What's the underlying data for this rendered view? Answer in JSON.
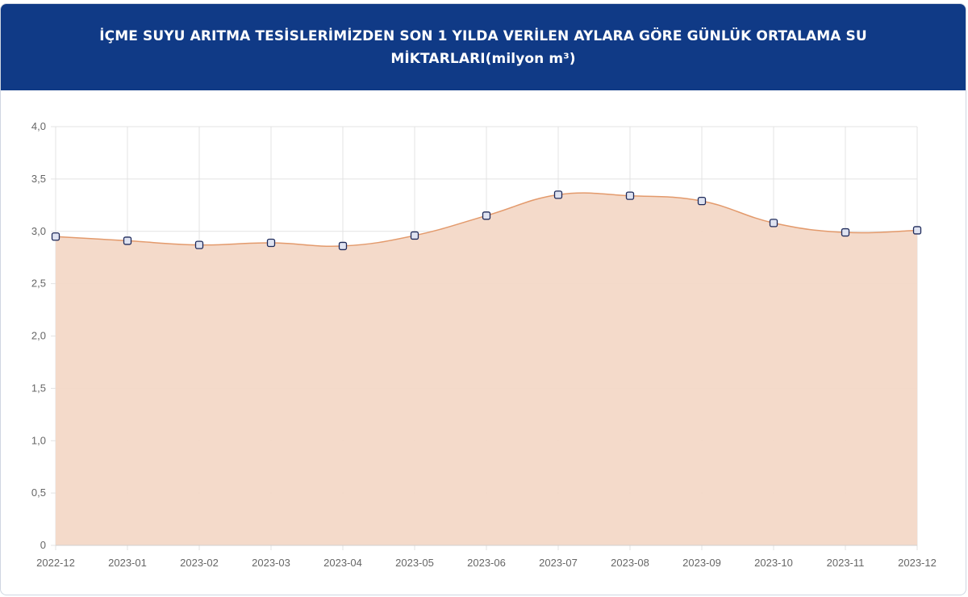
{
  "header": {
    "title": "İÇME SUYU ARITMA TESİSLERİMİZDEN SON 1 YILDA VERİLEN AYLARA GÖRE GÜNLÜK ORTALAMA SU MİKTARLARI(milyon m³)"
  },
  "colors": {
    "header_bg": "#103a86",
    "area_fill": "#f3d8c7",
    "line": "#e39a6c",
    "marker_border": "#1e2a5a",
    "grid": "#e3e3e3"
  },
  "chart_data": {
    "type": "area",
    "categories": [
      "2022-12",
      "2023-01",
      "2023-02",
      "2023-03",
      "2023-04",
      "2023-05",
      "2023-06",
      "2023-07",
      "2023-08",
      "2023-09",
      "2023-10",
      "2023-11",
      "2023-12"
    ],
    "series": [
      {
        "values": [
          2.95,
          2.91,
          2.87,
          2.89,
          2.86,
          2.96,
          3.15,
          3.35,
          3.34,
          3.29,
          3.08,
          2.99,
          3.01
        ]
      }
    ],
    "ylim": [
      0,
      4.0
    ],
    "yticks": [
      "0",
      "0,5",
      "1,0",
      "1,5",
      "2,0",
      "2,5",
      "3,0",
      "3,5",
      "4,0"
    ],
    "grid": true,
    "legend": "none"
  }
}
